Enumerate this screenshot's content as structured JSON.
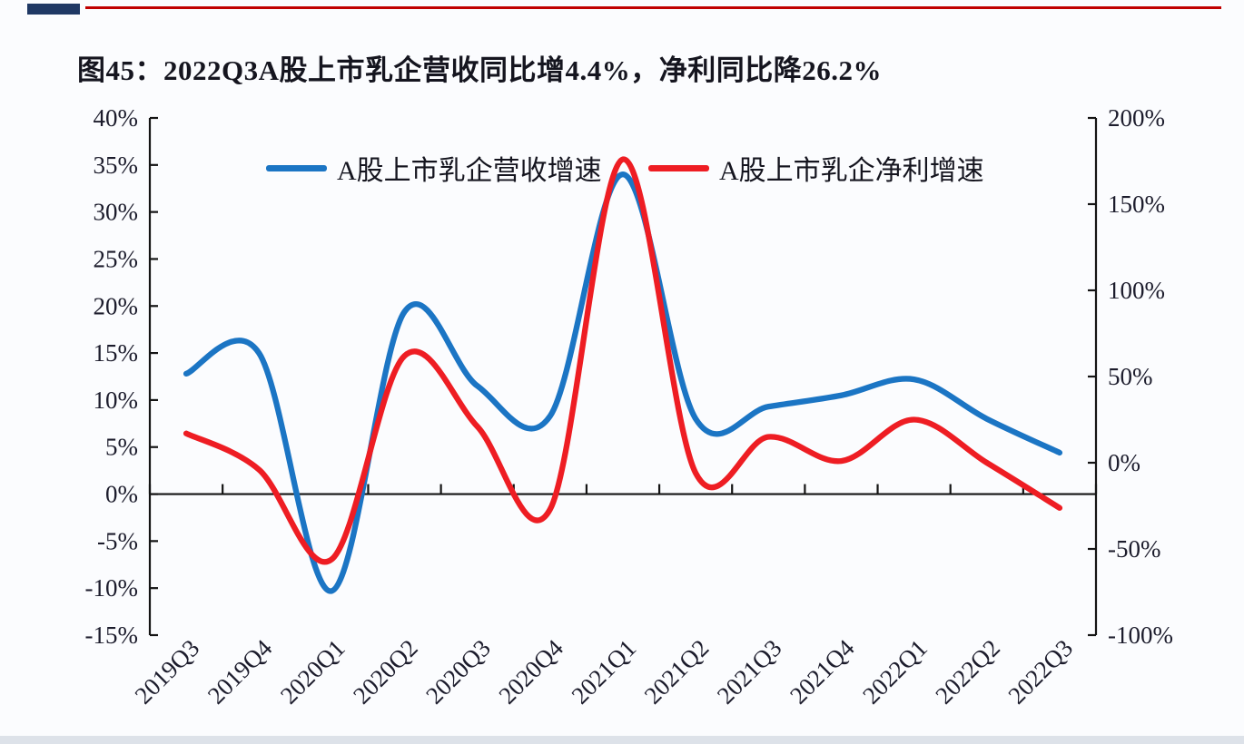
{
  "figure": {
    "caption": "图45：2022Q3A股上市乳企营收同比增4.4%，净利同比降26.2%"
  },
  "chart_data": {
    "type": "line",
    "title": "图45：2022Q3A股上市乳企营收同比增4.4%，净利同比降26.2%",
    "categories": [
      "2019Q3",
      "2019Q4",
      "2020Q1",
      "2020Q2",
      "2020Q3",
      "2020Q4",
      "2021Q1",
      "2021Q2",
      "2021Q3",
      "2021Q4",
      "2022Q1",
      "2022Q2",
      "2022Q3"
    ],
    "series": [
      {
        "name": "A股上市乳企营收增速",
        "axis": "left",
        "color": "#1b75c4",
        "values": [
          12.8,
          15.0,
          -10.3,
          19.4,
          11.5,
          8.3,
          34.0,
          8.0,
          9.3,
          10.5,
          12.2,
          8.0,
          4.4
        ]
      },
      {
        "name": "A股上市乳企净利增速",
        "axis": "right",
        "color": "#ee1d23",
        "values": [
          17,
          -4,
          -56,
          62,
          21,
          -27,
          176,
          -6,
          15,
          1,
          25,
          0,
          -26.2
        ]
      }
    ],
    "left_axis": {
      "min": -15,
      "max": 40,
      "tick_values": [
        40,
        35,
        30,
        25,
        20,
        15,
        10,
        5,
        0,
        -5,
        -10,
        -15
      ],
      "tick_suffix": "%"
    },
    "right_axis": {
      "min": -100,
      "max": 200,
      "tick_values": [
        200,
        150,
        100,
        50,
        0,
        -50,
        -100
      ],
      "tick_suffix": "%"
    },
    "legend_position": "top-center",
    "grid": false,
    "zero_line": true
  },
  "colors": {
    "axis_line": "#141414",
    "tick_text": "#1c1c2c",
    "top_block": "#1f3864",
    "top_rule": "#c00000"
  }
}
